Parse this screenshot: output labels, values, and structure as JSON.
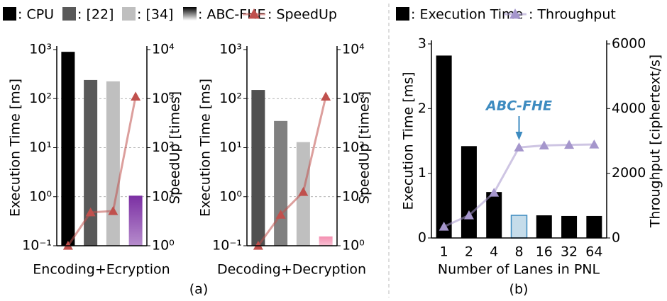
{
  "chart_data": [
    {
      "type": "bar",
      "x_label": "Encoding+Ecryption",
      "caption": "(a)",
      "y_label": "Execution Time [ms]",
      "y2_label": "SpeedUp [times]",
      "categories": [
        null,
        null,
        null,
        null
      ],
      "log_y": true,
      "log_y2": true,
      "grid": true,
      "ylim": [
        0.1,
        1000
      ],
      "yticks": [
        {
          "value": 0.1,
          "label": "10⁻¹"
        },
        {
          "value": 1,
          "label": "10⁰"
        },
        {
          "value": 10,
          "label": "10¹"
        },
        {
          "value": 100,
          "label": "10²"
        },
        {
          "value": 1000,
          "label": "10³"
        }
      ],
      "y2lim": [
        1,
        10000
      ],
      "y2ticks": [
        {
          "value": 1,
          "label": "10⁰"
        },
        {
          "value": 10,
          "label": "10¹"
        },
        {
          "value": 100,
          "label": "10²"
        },
        {
          "value": 1000,
          "label": "10³"
        },
        {
          "value": 10000,
          "label": "10⁴"
        }
      ],
      "series": [
        {
          "name": ": CPU",
          "color": "#000000",
          "values": [
            900,
            null,
            null,
            null
          ]
        },
        {
          "name": ": [22]",
          "color": "#595959",
          "values": [
            null,
            240,
            null,
            null
          ]
        },
        {
          "name": ": [34]",
          "color": "#bfbfbf",
          "values": [
            null,
            null,
            225,
            null
          ]
        },
        {
          "name": ": ABC-FHE",
          "color": "#7b2fa3",
          "gradient": true,
          "values": [
            null,
            null,
            null,
            1.05
          ]
        },
        {
          "name": ": SpeedUp",
          "color": "#c0504d",
          "kind": "line",
          "axis": "y2",
          "values": [
            1,
            4.8,
            5.1,
            1100
          ]
        }
      ]
    },
    {
      "type": "bar",
      "x_label": "Decoding+Decryption",
      "y_label": "Execution Time [ms]",
      "y2_label": "SpeedUp [times]",
      "categories": [
        null,
        null,
        null,
        null
      ],
      "log_y": true,
      "log_y2": true,
      "grid": true,
      "ylim": [
        0.1,
        1000
      ],
      "yticks": [
        {
          "value": 0.1,
          "label": "10⁻¹"
        },
        {
          "value": 1,
          "label": "10⁰"
        },
        {
          "value": 10,
          "label": "10¹"
        },
        {
          "value": 100,
          "label": "10²"
        },
        {
          "value": 1000,
          "label": "10³"
        }
      ],
      "y2lim": [
        1,
        10000
      ],
      "y2ticks": [
        {
          "value": 1,
          "label": "10⁰"
        },
        {
          "value": 10,
          "label": "10¹"
        },
        {
          "value": 100,
          "label": "10²"
        },
        {
          "value": 1000,
          "label": "10³"
        },
        {
          "value": 10000,
          "label": "10⁴"
        }
      ],
      "series": [
        {
          "color": "#505050",
          "values": [
            150,
            null,
            null,
            null
          ]
        },
        {
          "color": "#808080",
          "values": [
            null,
            35,
            null,
            null
          ]
        },
        {
          "color": "#bfbfbf",
          "values": [
            null,
            null,
            13,
            null
          ]
        },
        {
          "color": "#f48fb1",
          "gradient": true,
          "values": [
            null,
            null,
            null,
            0.155
          ]
        },
        {
          "color": "#c0504d",
          "kind": "line",
          "axis": "y2",
          "values": [
            1,
            4.3,
            12.5,
            1100
          ]
        }
      ]
    },
    {
      "type": "bar",
      "x_label": "Number of Lanes in PNL",
      "caption": "(b)",
      "y_label": "Execution Time [ms]",
      "y2_label": "Throughput [ciphertext/s]",
      "annotation": "ABC-FHE",
      "categories": [
        "1",
        "2",
        "4",
        "8",
        "16",
        "32",
        "64"
      ],
      "ylim": [
        0,
        3
      ],
      "yticks": [
        0,
        1,
        2,
        3
      ],
      "y2lim": [
        0,
        6000
      ],
      "y2ticks": [
        0,
        2000,
        4000,
        6000
      ],
      "series": [
        {
          "name": ": Execution Time",
          "color": "#000000",
          "colors": [
            "#000000",
            "#000000",
            "#000000",
            "#c5dcea",
            "#000000",
            "#000000",
            "#000000"
          ],
          "values": [
            2.82,
            1.42,
            0.71,
            0.35,
            0.35,
            0.34,
            0.34
          ]
        },
        {
          "name": ": Throughput",
          "color": "#a596cc",
          "kind": "line",
          "axis": "y2",
          "values": [
            350,
            700,
            1400,
            2800,
            2860,
            2880,
            2890
          ]
        }
      ]
    }
  ]
}
